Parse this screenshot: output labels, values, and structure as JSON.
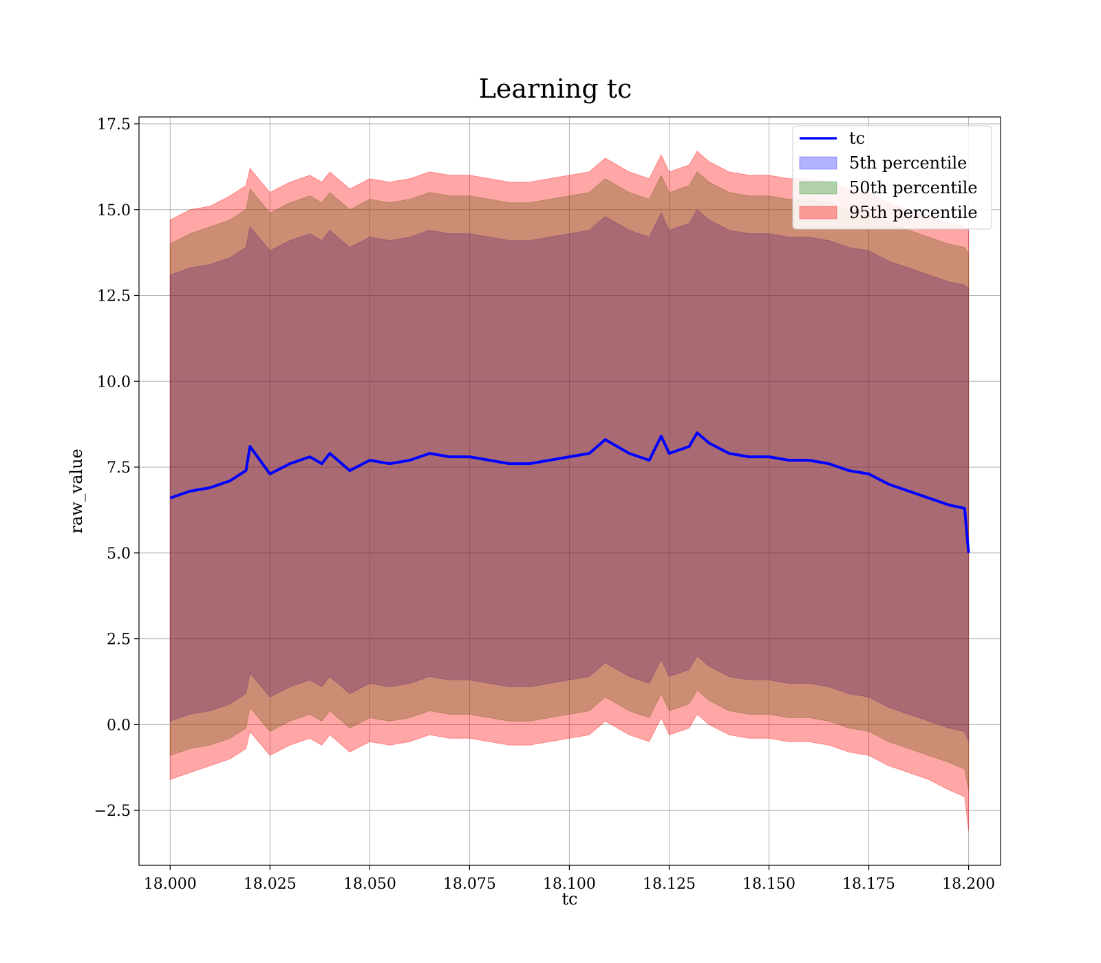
{
  "colors": {
    "tc_line": "#0000ff",
    "band_5th": "#0000ff",
    "band_50th": "#008000",
    "band_95th": "#ff0000",
    "grid": "#b0b0b0",
    "axes": "#000000"
  },
  "chart_data": {
    "type": "area",
    "title": "Learning tc",
    "xlabel": "tc",
    "ylabel": "raw_value",
    "xlim": [
      17.9922,
      18.208
    ],
    "ylim": [
      -4.1,
      17.7
    ],
    "xticks": [
      18.0,
      18.025,
      18.05,
      18.075,
      18.1,
      18.125,
      18.15,
      18.175,
      18.2
    ],
    "xtick_labels": [
      "18.000",
      "18.025",
      "18.050",
      "18.075",
      "18.100",
      "18.125",
      "18.150",
      "18.175",
      "18.200"
    ],
    "yticks": [
      -2.5,
      0.0,
      2.5,
      5.0,
      7.5,
      10.0,
      12.5,
      15.0,
      17.5
    ],
    "ytick_labels": [
      "−2.5",
      "0.0",
      "2.5",
      "5.0",
      "7.5",
      "10.0",
      "12.5",
      "15.0",
      "17.5"
    ],
    "grid": true,
    "legend": {
      "placement": "upper right",
      "entries": [
        {
          "label": "tc",
          "kind": "line",
          "color": "#0000ff"
        },
        {
          "label": "5th percentile",
          "kind": "patch",
          "color": "#0000ff"
        },
        {
          "label": "50th percentile",
          "kind": "patch",
          "color": "#008000"
        },
        {
          "label": "95th percentile",
          "kind": "patch",
          "color": "#ff0000"
        }
      ]
    },
    "x": [
      18.0,
      18.005,
      18.01,
      18.015,
      18.019,
      18.02,
      18.025,
      18.03,
      18.035,
      18.038,
      18.04,
      18.045,
      18.05,
      18.055,
      18.06,
      18.065,
      18.07,
      18.075,
      18.08,
      18.085,
      18.09,
      18.095,
      18.1,
      18.105,
      18.109,
      18.115,
      18.12,
      18.123,
      18.125,
      18.13,
      18.132,
      18.135,
      18.14,
      18.145,
      18.15,
      18.155,
      18.16,
      18.165,
      18.17,
      18.175,
      18.18,
      18.185,
      18.19,
      18.195,
      18.199,
      18.2
    ],
    "series": [
      {
        "name": "tc",
        "values": [
          6.6,
          6.8,
          6.9,
          7.1,
          7.4,
          8.1,
          7.3,
          7.6,
          7.8,
          7.6,
          7.9,
          7.4,
          7.7,
          7.6,
          7.7,
          7.9,
          7.8,
          7.8,
          7.7,
          7.6,
          7.6,
          7.7,
          7.8,
          7.9,
          8.3,
          7.9,
          7.7,
          8.4,
          7.9,
          8.1,
          8.5,
          8.2,
          7.9,
          7.8,
          7.8,
          7.7,
          7.7,
          7.6,
          7.4,
          7.3,
          7.0,
          6.8,
          6.6,
          6.4,
          6.3,
          5.0
        ]
      },
      {
        "name": "5th percentile",
        "lower": [
          0.1,
          0.3,
          0.4,
          0.6,
          0.9,
          1.5,
          0.8,
          1.1,
          1.3,
          1.1,
          1.4,
          0.9,
          1.2,
          1.1,
          1.2,
          1.4,
          1.3,
          1.3,
          1.2,
          1.1,
          1.1,
          1.2,
          1.3,
          1.4,
          1.8,
          1.4,
          1.2,
          1.9,
          1.4,
          1.6,
          2.0,
          1.7,
          1.4,
          1.3,
          1.3,
          1.2,
          1.2,
          1.1,
          0.9,
          0.8,
          0.5,
          0.3,
          0.1,
          -0.1,
          -0.2,
          -0.5
        ],
        "upper": [
          13.1,
          13.3,
          13.4,
          13.6,
          13.9,
          14.5,
          13.8,
          14.1,
          14.3,
          14.1,
          14.4,
          13.9,
          14.2,
          14.1,
          14.2,
          14.4,
          14.3,
          14.3,
          14.2,
          14.1,
          14.1,
          14.2,
          14.3,
          14.4,
          14.8,
          14.4,
          14.2,
          14.9,
          14.4,
          14.6,
          15.0,
          14.7,
          14.4,
          14.3,
          14.3,
          14.2,
          14.2,
          14.1,
          13.9,
          13.8,
          13.5,
          13.3,
          13.1,
          12.9,
          12.8,
          12.7
        ]
      },
      {
        "name": "50th percentile",
        "lower": [
          -0.9,
          -0.7,
          -0.6,
          -0.4,
          -0.1,
          0.5,
          -0.2,
          0.1,
          0.3,
          0.1,
          0.4,
          -0.1,
          0.2,
          0.1,
          0.2,
          0.4,
          0.3,
          0.3,
          0.2,
          0.1,
          0.1,
          0.2,
          0.3,
          0.4,
          0.8,
          0.4,
          0.2,
          0.9,
          0.4,
          0.6,
          1.0,
          0.7,
          0.4,
          0.3,
          0.3,
          0.2,
          0.2,
          0.1,
          -0.1,
          -0.2,
          -0.5,
          -0.7,
          -0.9,
          -1.1,
          -1.3,
          -1.9
        ],
        "upper": [
          14.0,
          14.3,
          14.5,
          14.7,
          15.0,
          15.6,
          14.9,
          15.2,
          15.4,
          15.2,
          15.5,
          15.0,
          15.3,
          15.2,
          15.3,
          15.5,
          15.4,
          15.4,
          15.3,
          15.2,
          15.2,
          15.3,
          15.4,
          15.5,
          15.9,
          15.5,
          15.3,
          16.0,
          15.5,
          15.7,
          16.1,
          15.8,
          15.5,
          15.4,
          15.4,
          15.3,
          15.3,
          15.2,
          15.0,
          14.9,
          14.6,
          14.4,
          14.2,
          14.0,
          13.9,
          13.7
        ]
      },
      {
        "name": "95th percentile",
        "lower": [
          -1.6,
          -1.4,
          -1.2,
          -1.0,
          -0.7,
          -0.2,
          -0.9,
          -0.6,
          -0.4,
          -0.6,
          -0.3,
          -0.8,
          -0.5,
          -0.6,
          -0.5,
          -0.3,
          -0.4,
          -0.4,
          -0.5,
          -0.6,
          -0.6,
          -0.5,
          -0.4,
          -0.3,
          0.1,
          -0.3,
          -0.5,
          0.2,
          -0.3,
          -0.1,
          0.3,
          0.0,
          -0.3,
          -0.4,
          -0.4,
          -0.5,
          -0.5,
          -0.6,
          -0.8,
          -0.9,
          -1.2,
          -1.4,
          -1.6,
          -1.9,
          -2.1,
          -3.1
        ],
        "upper": [
          14.7,
          15.0,
          15.1,
          15.4,
          15.7,
          16.2,
          15.5,
          15.8,
          16.0,
          15.8,
          16.1,
          15.6,
          15.9,
          15.8,
          15.9,
          16.1,
          16.0,
          16.0,
          15.9,
          15.8,
          15.8,
          15.9,
          16.0,
          16.1,
          16.5,
          16.1,
          15.9,
          16.6,
          16.1,
          16.3,
          16.7,
          16.4,
          16.1,
          16.0,
          16.0,
          15.9,
          15.9,
          15.8,
          15.6,
          15.5,
          15.2,
          15.0,
          14.8,
          14.6,
          14.5,
          14.4
        ]
      }
    ]
  }
}
